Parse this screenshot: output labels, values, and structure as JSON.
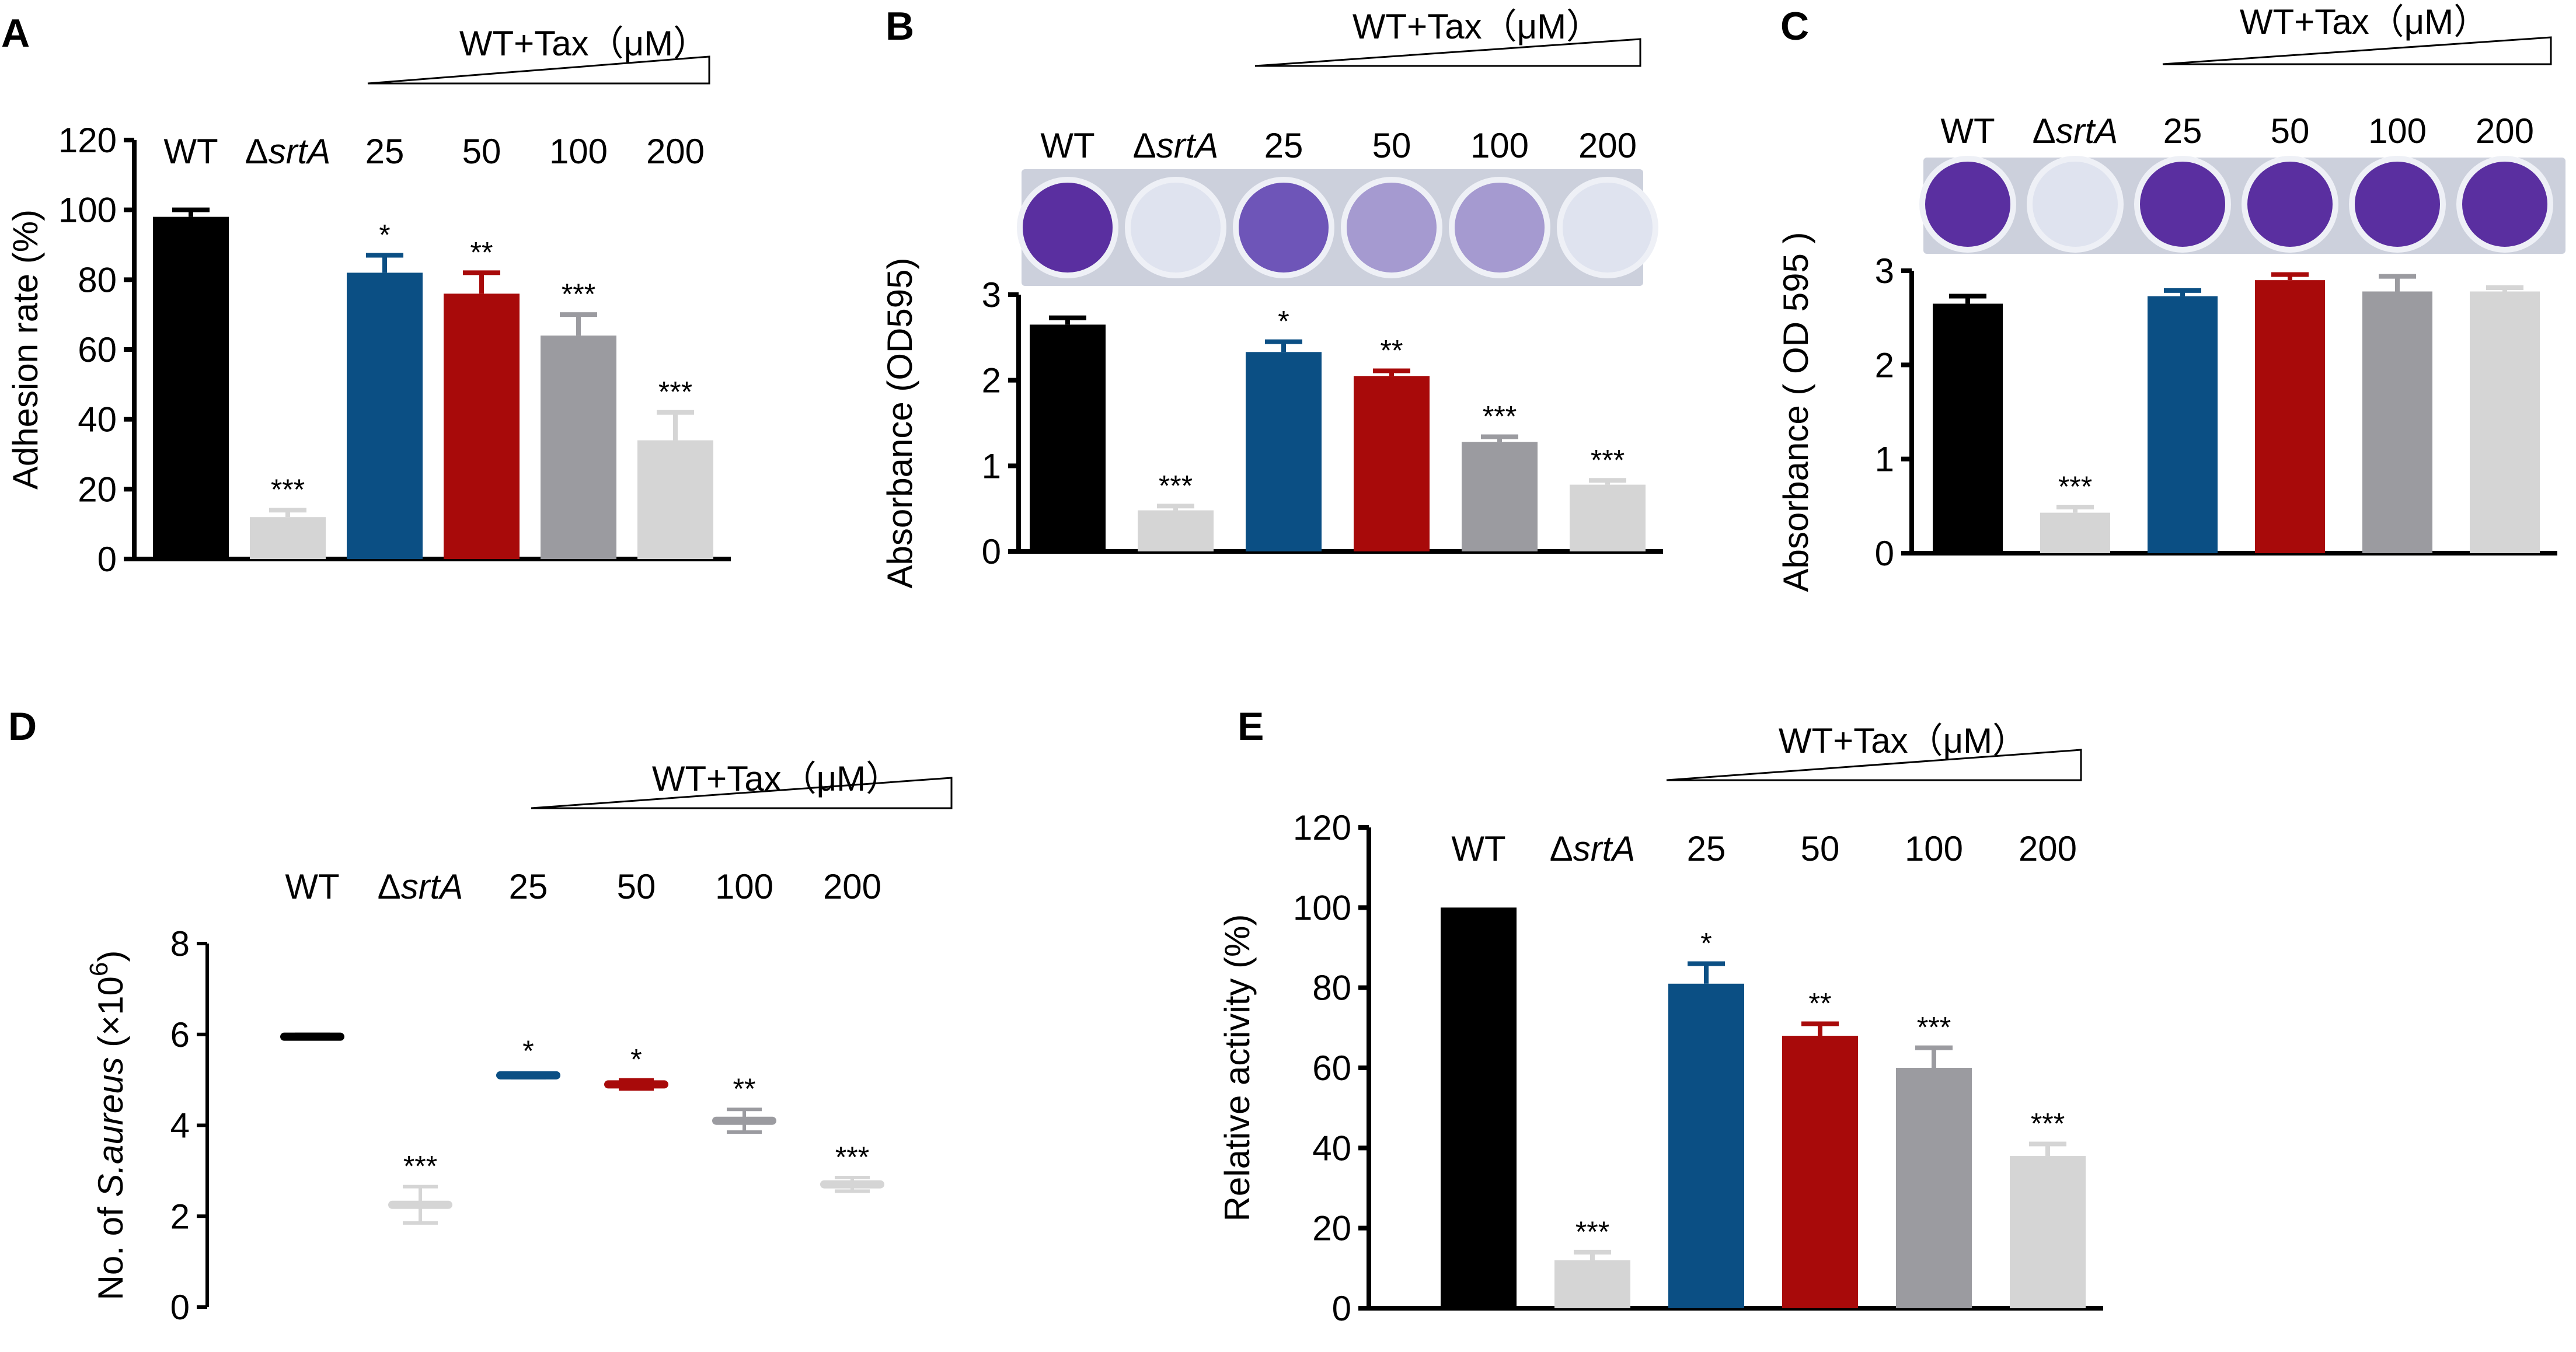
{
  "treatment_label": "WT+Tax（μM）",
  "colors": {
    "WT": "#000000",
    "srtA": "#d5d5d5",
    "tax25": "#0b4f84",
    "tax50": "#a80a0a",
    "tax100": "#9b9ba0",
    "tax200": "#d5d5d5",
    "well_bg": "#ccd0dc",
    "well_purple_strong": "#5a2fa0",
    "well_purple_mid": "#6e55b8",
    "well_purple_light": "#a59ad0",
    "well_clear": "#dfe3ef"
  },
  "chart_data": [
    {
      "panel": "A",
      "type": "bar",
      "categories": [
        "WT",
        "ΔsrtA",
        "25",
        "50",
        "100",
        "200"
      ],
      "values": [
        98,
        12,
        82,
        76,
        64,
        34
      ],
      "errors": [
        2,
        2,
        5,
        6,
        6,
        8
      ],
      "significance": [
        "",
        "***",
        "*",
        "**",
        "***",
        "***"
      ],
      "ylabel": "Adhesion rate (%)",
      "ylim": [
        0,
        120
      ],
      "yticks": [
        0,
        20,
        40,
        60,
        80,
        100,
        120
      ]
    },
    {
      "panel": "B",
      "type": "bar",
      "categories": [
        "WT",
        "ΔsrtA",
        "25",
        "50",
        "100",
        "200"
      ],
      "values": [
        2.65,
        0.48,
        2.33,
        2.05,
        1.28,
        0.78
      ],
      "errors": [
        0.08,
        0.05,
        0.12,
        0.06,
        0.06,
        0.05
      ],
      "significance": [
        "",
        "***",
        "*",
        "**",
        "***",
        "***"
      ],
      "ylabel": "Absorbance (OD595)",
      "ylim": [
        0,
        3
      ],
      "yticks": [
        0,
        1,
        2,
        3
      ],
      "well_intensity": [
        "strong",
        "clear",
        "mid",
        "light",
        "light",
        "clear"
      ]
    },
    {
      "panel": "C",
      "type": "bar",
      "categories": [
        "WT",
        "ΔsrtA",
        "25",
        "50",
        "100",
        "200"
      ],
      "values": [
        2.65,
        0.43,
        2.73,
        2.9,
        2.78,
        2.78
      ],
      "errors": [
        0.08,
        0.06,
        0.06,
        0.06,
        0.16,
        0.04
      ],
      "significance": [
        "",
        "***",
        "",
        "",
        "",
        ""
      ],
      "ylabel": "Absorbance ( OD 595 )",
      "ylim": [
        0,
        3
      ],
      "yticks": [
        0,
        1,
        2,
        3
      ],
      "well_intensity": [
        "strong",
        "clear",
        "strong",
        "strong",
        "strong",
        "strong"
      ]
    },
    {
      "panel": "D",
      "type": "scatter",
      "categories": [
        "WT",
        "ΔsrtA",
        "25",
        "50",
        "100",
        "200"
      ],
      "values": [
        5.95,
        2.25,
        5.1,
        4.9,
        4.1,
        2.7
      ],
      "errors": [
        0.05,
        0.4,
        0.05,
        0.1,
        0.25,
        0.15
      ],
      "significance": [
        "",
        "***",
        "*",
        "*",
        "**",
        "***"
      ],
      "ylabel_prefix": "No. of ",
      "ylabel_species": "S.aureus",
      "ylabel_suffix": " (×10",
      "ylabel_exp": "6",
      "ylabel_close": ")",
      "ylim": [
        0,
        8
      ],
      "yticks": [
        0,
        2,
        4,
        6,
        8
      ]
    },
    {
      "panel": "E",
      "type": "bar",
      "categories": [
        "WT",
        "ΔsrtA",
        "25",
        "50",
        "100",
        "200"
      ],
      "values": [
        100,
        12,
        81,
        68,
        60,
        38
      ],
      "errors": [
        0,
        2,
        5,
        3,
        5,
        3
      ],
      "significance": [
        "",
        "***",
        "*",
        "**",
        "***",
        "***"
      ],
      "ylabel": "Relative activity (%)",
      "ylim": [
        0,
        120
      ],
      "yticks": [
        0,
        20,
        40,
        60,
        80,
        100,
        120
      ]
    }
  ]
}
